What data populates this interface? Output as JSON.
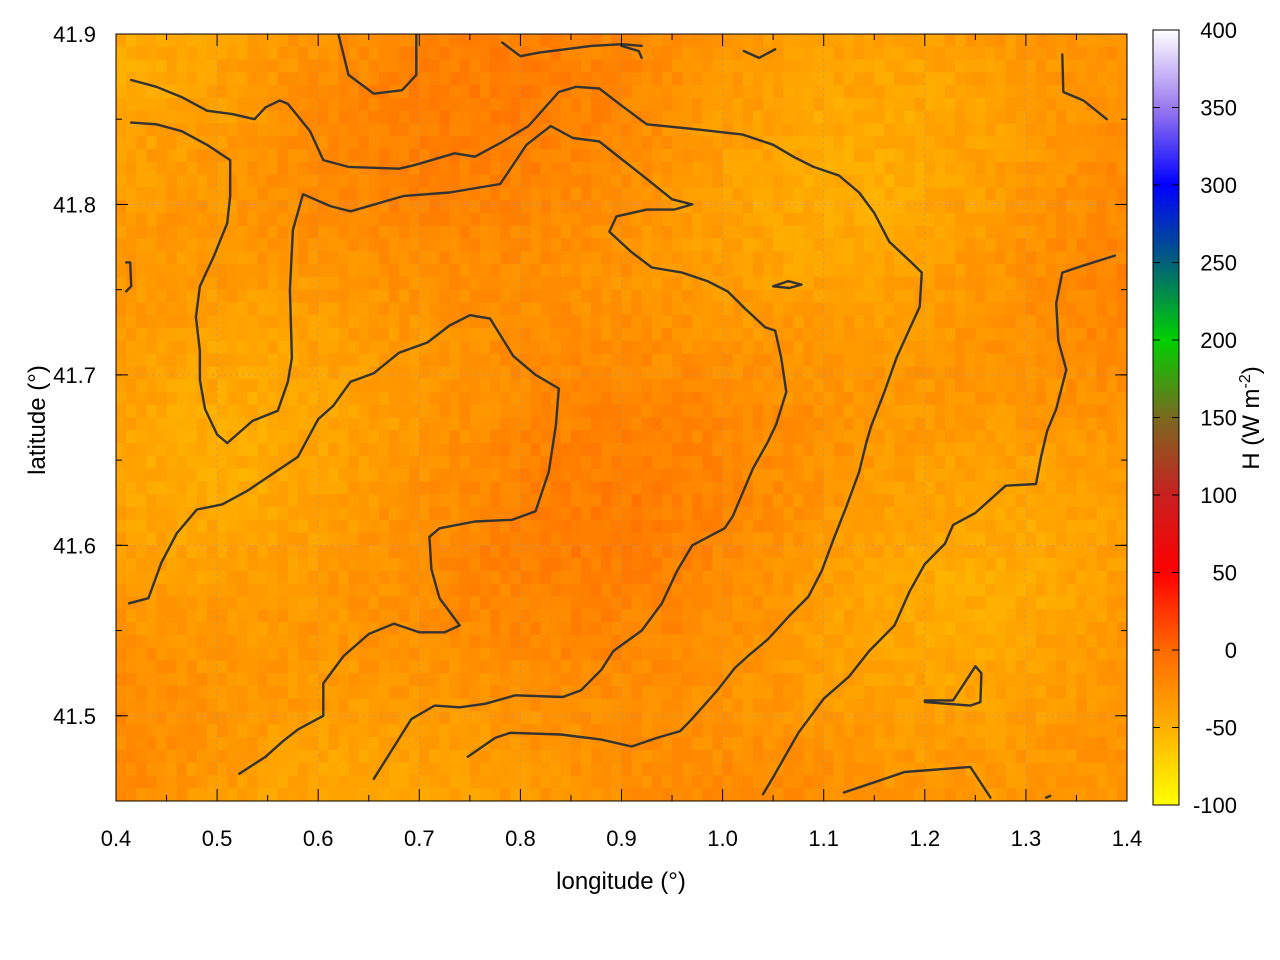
{
  "chart_data": {
    "type": "heatmap",
    "title": "",
    "xlabel": "longitude (°)",
    "ylabel": "latitude (°)",
    "colorbar_label": "H (W m",
    "colorbar_label_exp": "-2",
    "colorbar_label_close": ")",
    "xlim": [
      0.4,
      1.4
    ],
    "ylim": [
      41.45,
      41.9
    ],
    "clim": [
      -100,
      400
    ],
    "x_ticks": [
      0.4,
      0.5,
      0.6,
      0.7,
      0.8,
      0.9,
      1.0,
      1.1,
      1.2,
      1.3,
      1.4
    ],
    "x_tick_labels": [
      "0.4",
      "0.5",
      "0.6",
      "0.7",
      "0.8",
      "0.9",
      "1.0",
      "1.1",
      "1.2",
      "1.3",
      "1.4"
    ],
    "y_ticks": [
      41.5,
      41.6,
      41.7,
      41.8,
      41.9
    ],
    "y_tick_labels": [
      "41.5",
      "41.6",
      "41.7",
      "41.8",
      "41.9"
    ],
    "colorbar_ticks": [
      -100,
      -50,
      0,
      50,
      100,
      150,
      200,
      250,
      300,
      350,
      400
    ],
    "colorbar_tick_labels": [
      "-100",
      "-50",
      "0",
      "50",
      "100",
      "150",
      "200",
      "250",
      "300",
      "350",
      "400"
    ],
    "colormap": [
      {
        "value": -100,
        "color": "#ffff00"
      },
      {
        "value": -50,
        "color": "#ffb000"
      },
      {
        "value": 0,
        "color": "#ff6a00"
      },
      {
        "value": 50,
        "color": "#ff0000"
      },
      {
        "value": 100,
        "color": "#c82020"
      },
      {
        "value": 150,
        "color": "#7a6a20"
      },
      {
        "value": 200,
        "color": "#00d000"
      },
      {
        "value": 250,
        "color": "#00607a"
      },
      {
        "value": 300,
        "color": "#0000ff"
      },
      {
        "value": 350,
        "color": "#9a7aee"
      },
      {
        "value": 400,
        "color": "#ffffff"
      }
    ],
    "value_range_shown": [
      -60,
      -5
    ],
    "grid": true,
    "contours": [
      [
        [
          0.415,
          41.873
        ],
        [
          0.44,
          41.869
        ],
        [
          0.465,
          41.863
        ],
        [
          0.49,
          41.855
        ],
        [
          0.515,
          41.853
        ],
        [
          0.537,
          41.85
        ],
        [
          0.548,
          41.857
        ],
        [
          0.562,
          41.861
        ],
        [
          0.57,
          41.859
        ],
        [
          0.592,
          41.843
        ],
        [
          0.605,
          41.826
        ],
        [
          0.63,
          41.822
        ],
        [
          0.68,
          41.821
        ],
        [
          0.695,
          41.823
        ],
        [
          0.735,
          41.83
        ],
        [
          0.755,
          41.828
        ],
        [
          0.78,
          41.836
        ],
        [
          0.808,
          41.846
        ],
        [
          0.823,
          41.856
        ],
        [
          0.838,
          41.866
        ],
        [
          0.855,
          41.869
        ],
        [
          0.878,
          41.868
        ],
        [
          0.9,
          41.858
        ],
        [
          0.925,
          41.847
        ],
        [
          0.975,
          41.844
        ],
        [
          1.02,
          41.841
        ],
        [
          1.05,
          41.835
        ],
        [
          1.07,
          41.828
        ],
        [
          1.09,
          41.822
        ],
        [
          1.115,
          41.817
        ],
        [
          1.135,
          41.807
        ],
        [
          1.15,
          41.795
        ],
        [
          1.165,
          41.778
        ],
        [
          1.185,
          41.767
        ],
        [
          1.197,
          41.76
        ],
        [
          1.195,
          41.74
        ],
        [
          1.185,
          41.727
        ],
        [
          1.172,
          41.71
        ],
        [
          1.16,
          41.69
        ],
        [
          1.147,
          41.67
        ],
        [
          1.142,
          41.66
        ],
        [
          1.135,
          41.643
        ],
        [
          1.122,
          41.622
        ],
        [
          1.11,
          41.604
        ],
        [
          1.098,
          41.585
        ],
        [
          1.085,
          41.57
        ],
        [
          1.065,
          41.558
        ],
        [
          1.045,
          41.545
        ],
        [
          1.025,
          41.535
        ],
        [
          1.012,
          41.528
        ],
        [
          0.995,
          41.515
        ],
        [
          0.968,
          41.497
        ],
        [
          0.958,
          41.491
        ],
        [
          0.935,
          41.487
        ],
        [
          0.91,
          41.482
        ],
        [
          0.88,
          41.486
        ],
        [
          0.84,
          41.489
        ],
        [
          0.79,
          41.49
        ],
        [
          0.775,
          41.487
        ],
        [
          0.748,
          41.476
        ]
      ],
      [
        [
          0.415,
          41.848
        ],
        [
          0.44,
          41.847
        ],
        [
          0.465,
          41.843
        ],
        [
          0.49,
          41.835
        ],
        [
          0.513,
          41.826
        ],
        [
          0.513,
          41.805
        ],
        [
          0.51,
          41.789
        ],
        [
          0.497,
          41.77
        ],
        [
          0.483,
          41.752
        ],
        [
          0.479,
          41.734
        ],
        [
          0.483,
          41.714
        ],
        [
          0.483,
          41.697
        ],
        [
          0.488,
          41.68
        ],
        [
          0.5,
          41.665
        ],
        [
          0.51,
          41.66
        ],
        [
          0.535,
          41.673
        ],
        [
          0.56,
          41.679
        ],
        [
          0.57,
          41.696
        ],
        [
          0.574,
          41.71
        ],
        [
          0.572,
          41.75
        ],
        [
          0.575,
          41.785
        ],
        [
          0.585,
          41.806
        ],
        [
          0.612,
          41.799
        ],
        [
          0.632,
          41.796
        ],
        [
          0.685,
          41.805
        ],
        [
          0.73,
          41.807
        ],
        [
          0.78,
          41.812
        ],
        [
          0.806,
          41.835
        ],
        [
          0.83,
          41.846
        ],
        [
          0.852,
          41.839
        ],
        [
          0.878,
          41.837
        ],
        [
          0.895,
          41.829
        ],
        [
          0.925,
          41.815
        ],
        [
          0.95,
          41.803
        ],
        [
          0.97,
          41.8
        ],
        [
          0.952,
          41.797
        ],
        [
          0.925,
          41.797
        ],
        [
          0.895,
          41.793
        ],
        [
          0.888,
          41.784
        ],
        [
          0.91,
          41.772
        ],
        [
          0.93,
          41.763
        ],
        [
          0.96,
          41.76
        ],
        [
          0.985,
          41.755
        ],
        [
          1.005,
          41.749
        ],
        [
          1.022,
          41.739
        ],
        [
          1.042,
          41.728
        ],
        [
          1.052,
          41.726
        ],
        [
          1.058,
          41.71
        ],
        [
          1.063,
          41.69
        ],
        [
          1.053,
          41.671
        ],
        [
          1.045,
          41.661
        ],
        [
          1.03,
          41.645
        ],
        [
          1.01,
          41.617
        ],
        [
          1.002,
          41.61
        ],
        [
          0.97,
          41.6
        ],
        [
          0.955,
          41.585
        ],
        [
          0.94,
          41.566
        ],
        [
          0.92,
          41.55
        ],
        [
          0.892,
          41.538
        ],
        [
          0.88,
          41.527
        ],
        [
          0.86,
          41.515
        ],
        [
          0.842,
          41.511
        ],
        [
          0.795,
          41.512
        ],
        [
          0.765,
          41.507
        ],
        [
          0.74,
          41.505
        ],
        [
          0.715,
          41.506
        ],
        [
          0.692,
          41.498
        ],
        [
          0.673,
          41.48
        ],
        [
          0.655,
          41.463
        ]
      ],
      [
        [
          0.413,
          41.566
        ],
        [
          0.432,
          41.569
        ],
        [
          0.445,
          41.59
        ],
        [
          0.46,
          41.607
        ],
        [
          0.48,
          41.621
        ],
        [
          0.505,
          41.624
        ],
        [
          0.53,
          41.632
        ],
        [
          0.555,
          41.642
        ],
        [
          0.58,
          41.652
        ],
        [
          0.6,
          41.674
        ],
        [
          0.615,
          41.682
        ],
        [
          0.632,
          41.696
        ],
        [
          0.655,
          41.701
        ],
        [
          0.68,
          41.713
        ],
        [
          0.708,
          41.719
        ],
        [
          0.73,
          41.729
        ],
        [
          0.75,
          41.735
        ],
        [
          0.77,
          41.733
        ],
        [
          0.793,
          41.711
        ],
        [
          0.815,
          41.7
        ],
        [
          0.838,
          41.692
        ],
        [
          0.835,
          41.67
        ],
        [
          0.828,
          41.643
        ],
        [
          0.815,
          41.62
        ],
        [
          0.792,
          41.615
        ],
        [
          0.755,
          41.614
        ],
        [
          0.72,
          41.61
        ],
        [
          0.71,
          41.605
        ],
        [
          0.712,
          41.586
        ],
        [
          0.72,
          41.569
        ],
        [
          0.74,
          41.553
        ],
        [
          0.725,
          41.549
        ],
        [
          0.7,
          41.549
        ],
        [
          0.675,
          41.554
        ],
        [
          0.65,
          41.548
        ],
        [
          0.625,
          41.535
        ],
        [
          0.605,
          41.519
        ],
        [
          0.605,
          41.5
        ],
        [
          0.58,
          41.492
        ],
        [
          0.565,
          41.485
        ],
        [
          0.548,
          41.476
        ],
        [
          0.522,
          41.466
        ]
      ],
      [
        [
          0.62,
          41.9
        ],
        [
          0.63,
          41.876
        ],
        [
          0.655,
          41.865
        ],
        [
          0.683,
          41.867
        ],
        [
          0.697,
          41.876
        ],
        [
          0.697,
          41.9
        ]
      ],
      [
        [
          1.12,
          41.455
        ],
        [
          1.15,
          41.461
        ],
        [
          1.18,
          41.467
        ],
        [
          1.245,
          41.47
        ],
        [
          1.265,
          41.452
        ]
      ],
      [
        [
          1.2,
          41.508
        ],
        [
          1.245,
          41.506
        ],
        [
          1.255,
          41.508
        ],
        [
          1.256,
          41.525
        ],
        [
          1.25,
          41.529
        ],
        [
          1.228,
          41.509
        ],
        [
          1.2,
          41.509
        ]
      ],
      [
        [
          1.388,
          41.77
        ],
        [
          1.356,
          41.764
        ],
        [
          1.336,
          41.76
        ],
        [
          1.33,
          41.742
        ],
        [
          1.332,
          41.72
        ],
        [
          1.34,
          41.703
        ],
        [
          1.33,
          41.68
        ],
        [
          1.321,
          41.667
        ],
        [
          1.315,
          41.652
        ],
        [
          1.31,
          41.636
        ],
        [
          1.28,
          41.635
        ],
        [
          1.25,
          41.619
        ],
        [
          1.228,
          41.612
        ],
        [
          1.22,
          41.601
        ],
        [
          1.2,
          41.589
        ],
        [
          1.185,
          41.573
        ],
        [
          1.17,
          41.553
        ],
        [
          1.145,
          41.538
        ],
        [
          1.125,
          41.523
        ],
        [
          1.1,
          41.51
        ],
        [
          1.075,
          41.49
        ],
        [
          1.05,
          41.464
        ],
        [
          1.04,
          41.454
        ]
      ],
      [
        [
          0.782,
          41.895
        ],
        [
          0.8,
          41.887
        ],
        [
          0.818,
          41.889
        ],
        [
          0.87,
          41.893
        ],
        [
          0.9,
          41.894
        ],
        [
          0.92,
          41.893
        ]
      ],
      [
        [
          0.9,
          41.893
        ],
        [
          0.917,
          41.89
        ],
        [
          0.92,
          41.886
        ]
      ],
      [
        [
          1.021,
          41.89
        ],
        [
          1.036,
          41.886
        ],
        [
          1.052,
          41.891
        ]
      ],
      [
        [
          1.05,
          41.752
        ],
        [
          1.065,
          41.755
        ],
        [
          1.078,
          41.753
        ],
        [
          1.066,
          41.751
        ],
        [
          1.05,
          41.752
        ]
      ],
      [
        [
          0.41,
          41.766
        ],
        [
          0.414,
          41.766
        ],
        [
          0.415,
          41.752
        ],
        [
          0.41,
          41.749
        ]
      ],
      [
        [
          1.336,
          41.888
        ],
        [
          1.337,
          41.866
        ],
        [
          1.357,
          41.861
        ],
        [
          1.38,
          41.85
        ]
      ],
      [
        [
          1.32,
          41.452
        ],
        [
          1.324,
          41.453
        ]
      ]
    ]
  }
}
